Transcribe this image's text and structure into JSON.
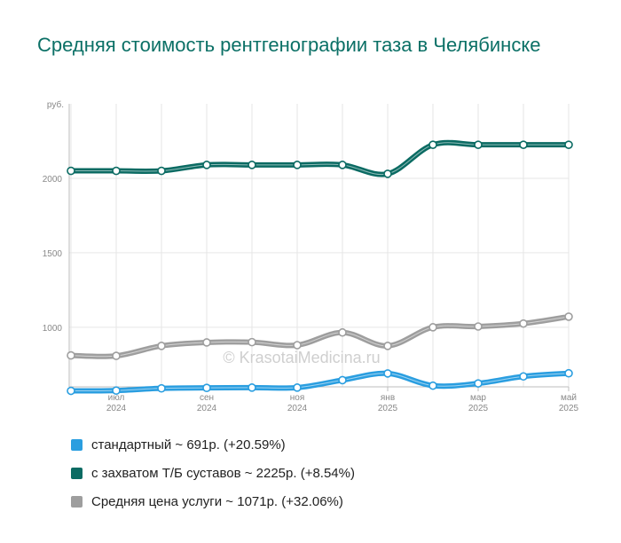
{
  "title": "Средняя стоимость рентгенографии таза в Челябинске",
  "watermark": "© KrasotaiMedicina.ru",
  "chart_data": {
    "type": "line",
    "y_unit": "руб.",
    "ylim": [
      600,
      2500
    ],
    "y_ticks": [
      1000,
      1500,
      2000
    ],
    "grid": true,
    "x": [
      "2024-06",
      "2024-07",
      "2024-08",
      "2024-09",
      "2024-10",
      "2024-11",
      "2024-12",
      "2025-01",
      "2025-02",
      "2025-03",
      "2025-04",
      "2025-05"
    ],
    "x_tick_labels": [
      {
        "month": "июл",
        "year": "2024",
        "index": 1
      },
      {
        "month": "сен",
        "year": "2024",
        "index": 3
      },
      {
        "month": "ноя",
        "year": "2024",
        "index": 5
      },
      {
        "month": "янв",
        "year": "2025",
        "index": 7
      },
      {
        "month": "мар",
        "year": "2025",
        "index": 9
      },
      {
        "month": "май",
        "year": "2025",
        "index": 11
      }
    ],
    "series": [
      {
        "legend": "стандартный ~ 691р. (+20.59%)",
        "color": "#2a9ee0",
        "values": [
          573,
          575,
          590,
          593,
          595,
          595,
          645,
          690,
          608,
          623,
          670,
          691
        ]
      },
      {
        "legend": "с захватом Т/Б суставов ~ 2225р. (+8.54%)",
        "color": "#0b6b63",
        "values": [
          2050,
          2050,
          2050,
          2090,
          2090,
          2090,
          2090,
          2030,
          2225,
          2225,
          2225,
          2225
        ]
      },
      {
        "legend": "Средняя цена услуги ~ 1071р. (+32.06%)",
        "color": "#9e9e9e",
        "values": [
          811,
          808,
          875,
          898,
          900,
          880,
          965,
          875,
          1000,
          1005,
          1025,
          1071
        ]
      }
    ],
    "legend_placement": "bottom"
  }
}
